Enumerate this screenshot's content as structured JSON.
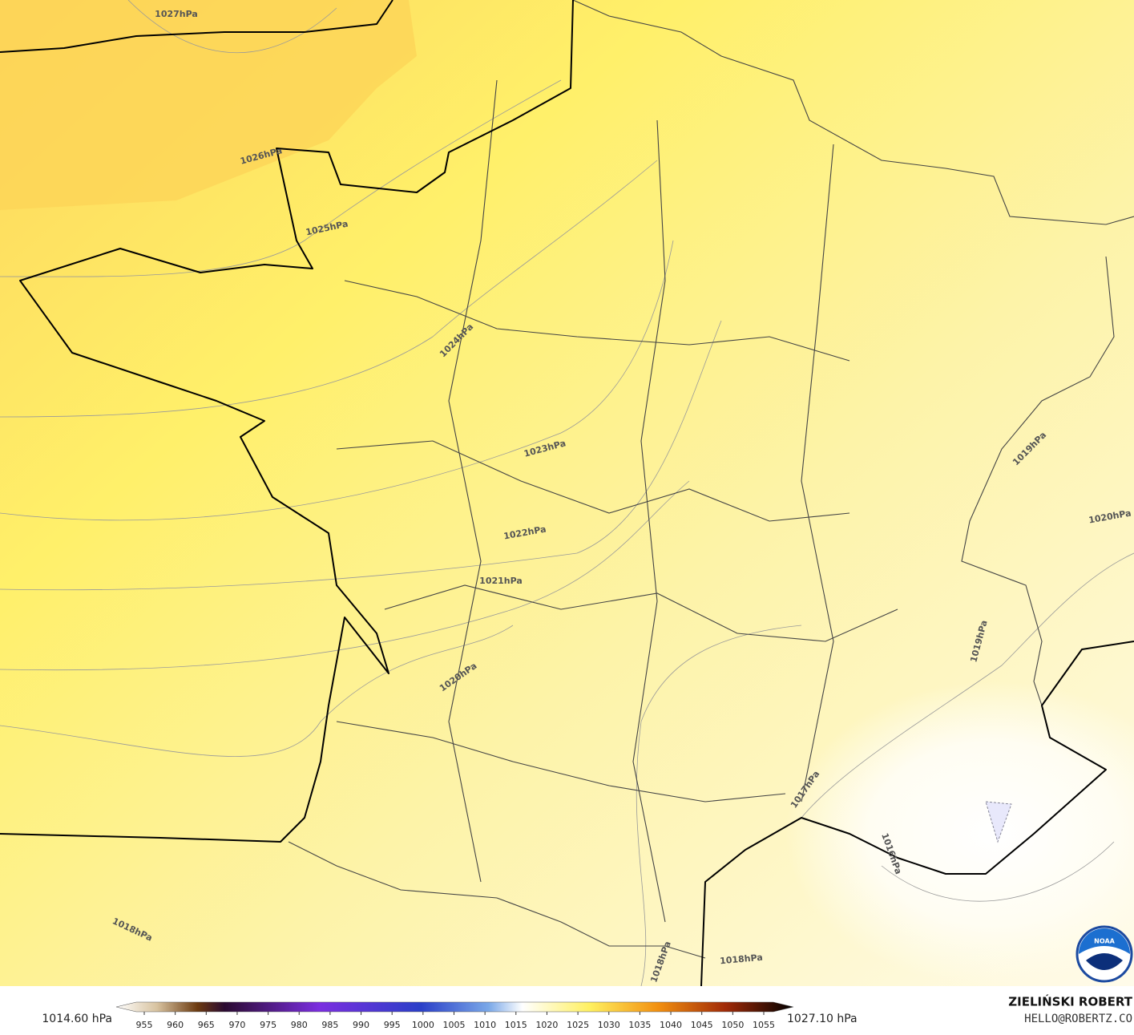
{
  "isobar_labels": [
    "1027hPa",
    "1026hPa",
    "1025hPa",
    "1024hPa",
    "1023hPa",
    "1022hPa",
    "1021hPa",
    "1020hPa",
    "1019hPa",
    "1020hPa",
    "1019hPa",
    "1017hPa",
    "1016hPa",
    "1018hPa",
    "1018hPa",
    "1018hPa"
  ],
  "legend": {
    "min_label": "1014.60 hPa",
    "max_label": "1027.10 hPa",
    "ticks": [
      955,
      960,
      965,
      970,
      975,
      980,
      985,
      990,
      995,
      1000,
      1005,
      1010,
      1015,
      1020,
      1025,
      1030,
      1035,
      1040,
      1045,
      1050,
      1055
    ]
  },
  "credit": {
    "name": "ZIELIŃSKI ROBERT",
    "email": "HELLO@ROBERTZ.CO"
  },
  "logo": "NOAA"
}
